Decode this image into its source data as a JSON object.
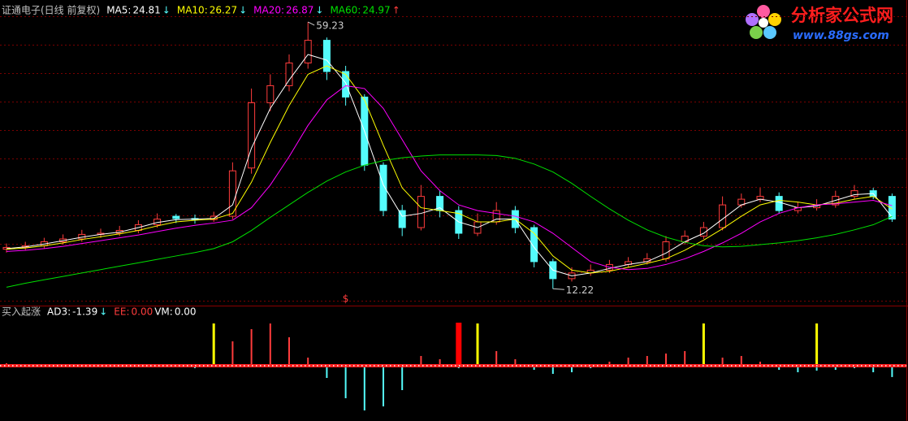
{
  "chart_data": [
    {
      "type": "candlestick",
      "title": "证通电子(日线 前复权)",
      "open": [
        19.2,
        19.5,
        19.8,
        20.5,
        21.0,
        21.8,
        22.0,
        22.5,
        23.5,
        25.0,
        24.6,
        24.4,
        25.0,
        33.5,
        45.0,
        48.0,
        52.0,
        56.0,
        50.5,
        46.0,
        34.0,
        26.0,
        23.0,
        28.5,
        26.0,
        22.0,
        24.0,
        26.0,
        23.0,
        17.0,
        14.0,
        15.0,
        15.5,
        16.5,
        17.0,
        17.5,
        20.5,
        21.5,
        23.0,
        27.0,
        28.0,
        28.5,
        26.0,
        26.5,
        27.0,
        28.5,
        29.5,
        28.5
      ],
      "high": [
        20.2,
        20.5,
        21.2,
        21.8,
        22.6,
        22.8,
        23.3,
        24.3,
        25.5,
        25.4,
        25.3,
        25.8,
        34.5,
        47.5,
        50.0,
        53.5,
        59.23,
        56.5,
        51.5,
        46.5,
        34.5,
        27.0,
        30.5,
        29.5,
        26.8,
        25.5,
        27.5,
        26.8,
        23.5,
        17.5,
        16.0,
        16.5,
        17.3,
        17.8,
        18.5,
        21.5,
        22.5,
        24.0,
        28.5,
        29.0,
        30.0,
        29.2,
        27.5,
        28.0,
        29.5,
        30.5,
        30.0,
        29.0
      ],
      "low": [
        18.6,
        19.0,
        19.3,
        20.0,
        20.5,
        21.2,
        21.5,
        22.0,
        23.0,
        23.8,
        23.7,
        24.0,
        24.5,
        32.5,
        43.5,
        47.0,
        51.0,
        49.0,
        44.5,
        33.0,
        25.0,
        21.5,
        22.5,
        24.8,
        21.0,
        21.5,
        23.5,
        22.0,
        16.0,
        12.22,
        13.5,
        14.5,
        15.0,
        16.0,
        16.5,
        17.0,
        20.0,
        21.0,
        22.5,
        26.5,
        27.5,
        25.5,
        25.5,
        26.0,
        26.5,
        28.0,
        28.0,
        24.0
      ],
      "close": [
        19.5,
        19.8,
        20.5,
        21.0,
        21.8,
        22.0,
        22.5,
        23.5,
        24.5,
        24.6,
        24.4,
        25.0,
        33.0,
        45.0,
        48.0,
        52.0,
        56.0,
        50.5,
        46.0,
        34.0,
        26.0,
        23.0,
        28.5,
        26.0,
        22.0,
        24.0,
        26.0,
        23.0,
        17.0,
        14.0,
        15.0,
        15.5,
        16.5,
        17.0,
        17.5,
        20.5,
        21.5,
        23.0,
        27.0,
        28.0,
        28.5,
        26.0,
        26.5,
        27.0,
        28.5,
        29.5,
        28.5,
        24.5
      ],
      "up_color": "#ff3c3c",
      "down_color": "#54fcfc",
      "ylim": [
        9.4,
        63.1
      ],
      "grid": true,
      "series": [
        {
          "name": "MA5:",
          "color": "#ffffff",
          "trend": "↓",
          "trend_color": "#54fcfc",
          "values": [
            19.3,
            19.6,
            20.1,
            20.7,
            21.3,
            21.8,
            22.2,
            23.0,
            23.9,
            24.4,
            24.5,
            24.6,
            27.0,
            37.0,
            44.0,
            49.0,
            53.5,
            52.5,
            48.5,
            40.0,
            30.5,
            25.0,
            25.5,
            26.5,
            24.0,
            23.0,
            24.5,
            24.5,
            19.5,
            15.5,
            14.5,
            15.0,
            15.8,
            16.5,
            17.0,
            18.5,
            20.5,
            22.0,
            24.5,
            27.0,
            28.0,
            27.5,
            26.5,
            26.8,
            27.8,
            28.8,
            29.0,
            24.81
          ]
        },
        {
          "name": "MA10:",
          "color": "#ffff00",
          "trend": "↓",
          "trend_color": "#54fcfc",
          "values": [
            19.2,
            19.4,
            19.8,
            20.3,
            20.9,
            21.4,
            21.9,
            22.5,
            23.3,
            24.0,
            24.3,
            24.5,
            25.5,
            31.0,
            38.0,
            44.5,
            50.0,
            51.5,
            50.0,
            45.5,
            37.5,
            30.0,
            26.5,
            26.0,
            25.5,
            24.0,
            24.0,
            24.5,
            22.0,
            18.0,
            15.5,
            15.0,
            15.3,
            16.0,
            16.7,
            17.5,
            19.0,
            20.8,
            22.8,
            25.0,
            27.0,
            27.8,
            27.5,
            27.0,
            27.3,
            28.0,
            28.5,
            26.27
          ]
        },
        {
          "name": "MA20:",
          "color": "#ff00ff",
          "trend": "↓",
          "trend_color": "#54fcfc",
          "values": [
            18.8,
            19.0,
            19.3,
            19.7,
            20.2,
            20.7,
            21.2,
            21.7,
            22.3,
            22.9,
            23.4,
            23.8,
            24.3,
            26.5,
            30.5,
            35.5,
            41.0,
            45.5,
            48.0,
            47.5,
            44.0,
            38.5,
            33.0,
            29.5,
            27.0,
            26.0,
            25.5,
            25.0,
            24.0,
            22.0,
            19.5,
            17.0,
            16.0,
            15.6,
            15.8,
            16.5,
            17.5,
            18.8,
            20.3,
            22.0,
            24.0,
            25.5,
            26.5,
            27.0,
            27.2,
            27.5,
            27.8,
            26.87
          ]
        },
        {
          "name": "MA60:",
          "color": "#00e000",
          "trend": "↑",
          "trend_color": "#ff3c3c",
          "values": [
            12.5,
            13.2,
            13.8,
            14.4,
            15.0,
            15.6,
            16.2,
            16.8,
            17.4,
            18.0,
            18.6,
            19.3,
            20.5,
            22.5,
            24.8,
            27.0,
            29.2,
            31.2,
            32.8,
            34.0,
            34.8,
            35.3,
            35.6,
            35.8,
            35.8,
            35.8,
            35.7,
            35.2,
            34.2,
            32.8,
            30.8,
            28.5,
            26.3,
            24.3,
            22.6,
            21.3,
            20.4,
            19.8,
            19.6,
            19.7,
            20.0,
            20.3,
            20.7,
            21.2,
            21.8,
            22.6,
            23.5,
            24.97
          ]
        }
      ],
      "annotations": [
        {
          "text": "$",
          "index": 18
        }
      ]
    },
    {
      "type": "bar",
      "title": "买入起涨",
      "ylim": [
        -6.5,
        6.5
      ],
      "series": [
        {
          "name": "AD3:",
          "color": "#ffffff",
          "up_color": "#ff3c3c",
          "down_color": "#54fcfc",
          "trend": "↓",
          "trend_color": "#54fcfc",
          "values": [
            0.3,
            0.2,
            0.1,
            0,
            -0.1,
            0.1,
            0.2,
            0.1,
            0,
            -0.2,
            -0.3,
            0.5,
            3.0,
            4.5,
            5.2,
            3.5,
            1.0,
            -1.5,
            -4.0,
            -5.5,
            -5.0,
            -3.0,
            1.2,
            0.8,
            -0.3,
            0.5,
            1.8,
            0.8,
            -0.5,
            -1.0,
            -0.8,
            -0.3,
            0.5,
            1.0,
            1.2,
            1.5,
            1.8,
            1.5,
            1.0,
            1.2,
            0.5,
            -0.5,
            -0.8,
            -0.6,
            -0.5,
            -0.3,
            -0.8,
            -1.39
          ]
        },
        {
          "name": "EE:",
          "color": "#ff3c3c",
          "values": [
            0
          ],
          "value_labels": [
            "0.00"
          ]
        },
        {
          "name": "VM:",
          "color": "#ffffff",
          "values": [
            0
          ],
          "value_labels": [
            "0.00"
          ]
        }
      ],
      "signals": [
        {
          "index": 11,
          "value": 5.2,
          "color": "#ffff00"
        },
        {
          "index": 24,
          "value": 5.3,
          "color": "#ff0000"
        },
        {
          "index": 25,
          "value": 5.2,
          "color": "#ffff00"
        },
        {
          "index": 37,
          "value": 5.2,
          "color": "#ffff00"
        },
        {
          "index": 43,
          "value": 5.2,
          "color": "#ffff00"
        }
      ]
    }
  ],
  "watermark": {
    "brand": "分析家公式网",
    "url": "www.88gs.com"
  }
}
